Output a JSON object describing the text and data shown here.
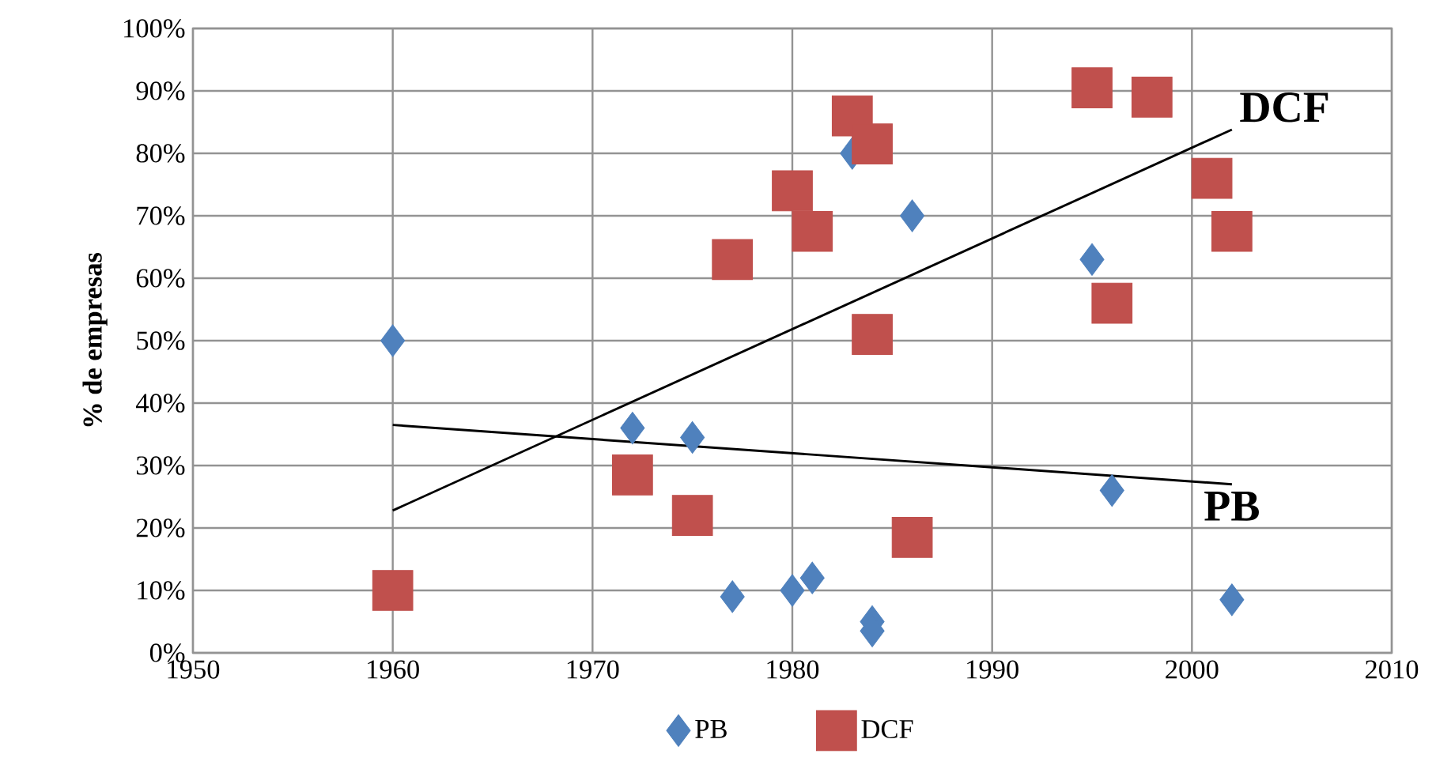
{
  "chart_data": {
    "type": "scatter",
    "ylabel": "% de empresas",
    "xlim": [
      1950,
      2010
    ],
    "xticks": [
      1950,
      1960,
      1970,
      1980,
      1990,
      2000,
      2010
    ],
    "ylim": [
      0,
      100
    ],
    "yticks": [
      {
        "value": 0,
        "label": "0%"
      },
      {
        "value": 10,
        "label": "10%"
      },
      {
        "value": 20,
        "label": "20%"
      },
      {
        "value": 30,
        "label": "30%"
      },
      {
        "value": 40,
        "label": "40%"
      },
      {
        "value": 50,
        "label": "50%"
      },
      {
        "value": 60,
        "label": "60%"
      },
      {
        "value": 70,
        "label": "70%"
      },
      {
        "value": 80,
        "label": "80%"
      },
      {
        "value": 90,
        "label": "90%"
      },
      {
        "value": 100,
        "label": "100%"
      }
    ],
    "grid": true,
    "legend": "bottom",
    "series": [
      {
        "name": "PB",
        "color": "#4f81bd",
        "marker": "diamond",
        "x": [
          1960,
          1972,
          1975,
          1977,
          1980,
          1981,
          1983,
          1984,
          1984,
          1986,
          1995,
          1996,
          2002
        ],
        "values": [
          50,
          36,
          34.5,
          9,
          10,
          12,
          80,
          5,
          3.5,
          70,
          63,
          26,
          8.5
        ]
      },
      {
        "name": "DCF",
        "color": "#c0504d",
        "marker": "square",
        "x": [
          1960,
          1972,
          1975,
          1977,
          1980,
          1981,
          1983,
          1984,
          1984,
          1986,
          1995,
          1996,
          1998,
          2001,
          2002
        ],
        "values": [
          10,
          28.5,
          22,
          63,
          74,
          67.5,
          86,
          81.5,
          51,
          18.5,
          90.5,
          56,
          89,
          76,
          67.5
        ]
      },
      {
        "type": "line",
        "color": "#000000",
        "marker": "none",
        "x": [
          1960,
          2002
        ],
        "values": [
          22.8,
          83.8
        ]
      },
      {
        "type": "line",
        "color": "#000000",
        "marker": "none",
        "x": [
          1960,
          2002
        ],
        "values": [
          36.5,
          27
        ]
      }
    ],
    "annotations": [
      "DCF",
      "PB"
    ]
  }
}
